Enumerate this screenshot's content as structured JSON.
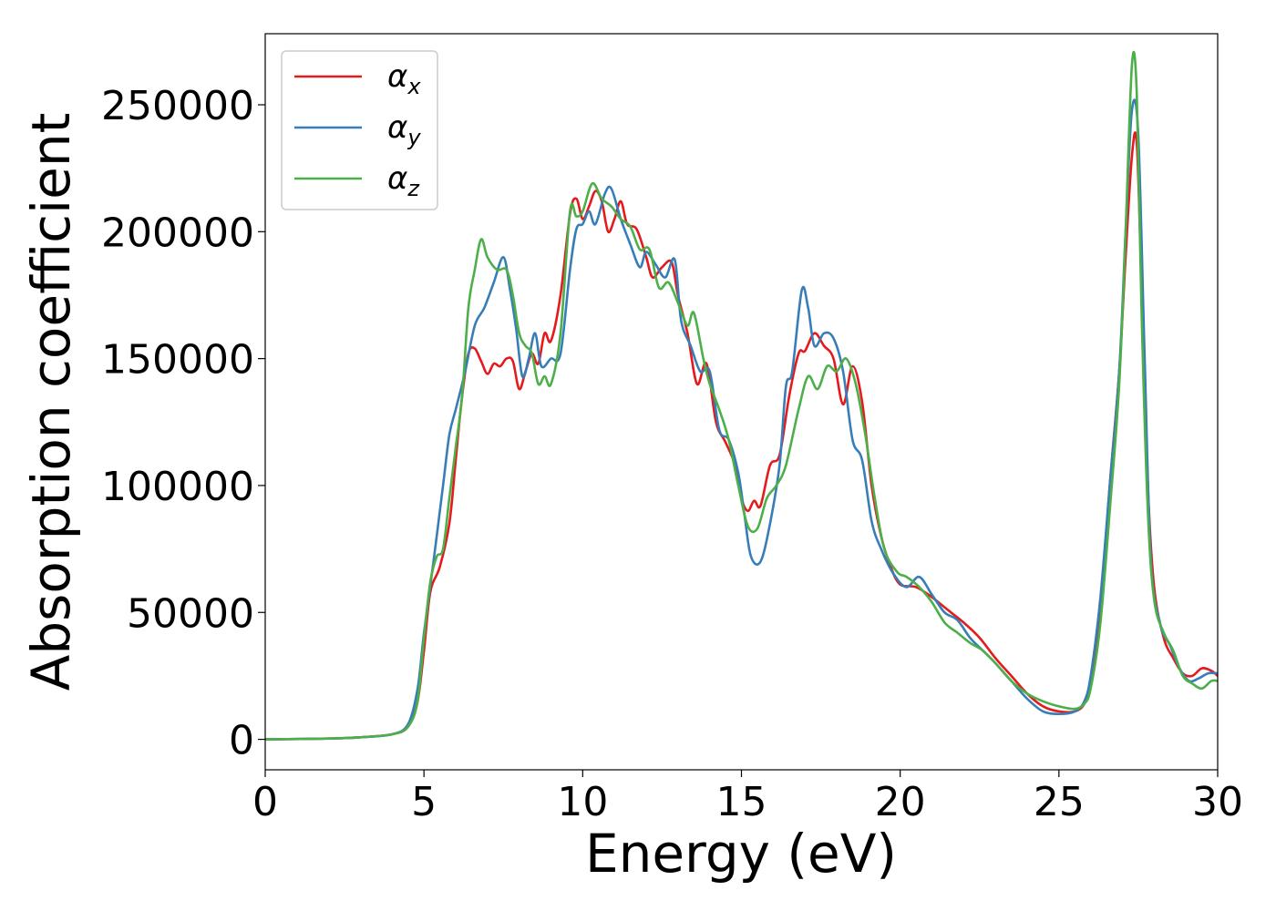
{
  "chart_data": {
    "type": "line",
    "title": "",
    "xlabel": "Energy (eV)",
    "ylabel": "Absorption coefficient",
    "xlim": [
      0,
      30
    ],
    "ylim": [
      -12000,
      278000
    ],
    "grid": false,
    "legend_position": "top-left",
    "xticks": [
      0,
      5,
      10,
      15,
      20,
      25,
      30
    ],
    "xtick_labels": [
      "0",
      "5",
      "10",
      "15",
      "20",
      "25",
      "30"
    ],
    "yticks": [
      0,
      50000,
      100000,
      150000,
      200000,
      250000
    ],
    "ytick_labels": [
      "0",
      "50000",
      "100000",
      "150000",
      "200000",
      "250000"
    ],
    "series": [
      {
        "name": "αx",
        "symbol": "α",
        "sub": "x",
        "color": "#e41a1c",
        "points": [
          [
            0,
            0
          ],
          [
            2,
            300
          ],
          [
            3,
            800
          ],
          [
            4,
            2000
          ],
          [
            4.5,
            5000
          ],
          [
            4.8,
            15000
          ],
          [
            5.0,
            35000
          ],
          [
            5.2,
            58000
          ],
          [
            5.5,
            68000
          ],
          [
            5.8,
            85000
          ],
          [
            6.0,
            110000
          ],
          [
            6.2,
            135000
          ],
          [
            6.4,
            152000
          ],
          [
            6.6,
            154000
          ],
          [
            6.8,
            149000
          ],
          [
            7.0,
            144000
          ],
          [
            7.2,
            148000
          ],
          [
            7.4,
            147000
          ],
          [
            7.6,
            150000
          ],
          [
            7.8,
            149000
          ],
          [
            8.0,
            138000
          ],
          [
            8.2,
            145000
          ],
          [
            8.4,
            152000
          ],
          [
            8.6,
            148000
          ],
          [
            8.8,
            160000
          ],
          [
            9.0,
            157000
          ],
          [
            9.3,
            175000
          ],
          [
            9.6,
            207000
          ],
          [
            9.8,
            213000
          ],
          [
            10.0,
            205000
          ],
          [
            10.2,
            210000
          ],
          [
            10.4,
            216000
          ],
          [
            10.6,
            212000
          ],
          [
            10.8,
            200000
          ],
          [
            11.0,
            205000
          ],
          [
            11.2,
            212000
          ],
          [
            11.4,
            203000
          ],
          [
            11.7,
            201000
          ],
          [
            12.0,
            190000
          ],
          [
            12.2,
            182000
          ],
          [
            12.5,
            186000
          ],
          [
            12.8,
            188000
          ],
          [
            13.0,
            175000
          ],
          [
            13.3,
            160000
          ],
          [
            13.6,
            140000
          ],
          [
            13.9,
            148000
          ],
          [
            14.2,
            125000
          ],
          [
            14.5,
            117000
          ],
          [
            14.8,
            108000
          ],
          [
            15.0,
            95000
          ],
          [
            15.2,
            90000
          ],
          [
            15.4,
            94000
          ],
          [
            15.6,
            92000
          ],
          [
            15.9,
            108000
          ],
          [
            16.2,
            112000
          ],
          [
            16.5,
            135000
          ],
          [
            16.8,
            152000
          ],
          [
            17.0,
            153000
          ],
          [
            17.3,
            160000
          ],
          [
            17.6,
            155000
          ],
          [
            17.9,
            150000
          ],
          [
            18.2,
            132000
          ],
          [
            18.5,
            147000
          ],
          [
            18.8,
            133000
          ],
          [
            19.1,
            100000
          ],
          [
            19.4,
            80000
          ],
          [
            19.7,
            68000
          ],
          [
            20.0,
            61000
          ],
          [
            20.5,
            60000
          ],
          [
            21.0,
            56000
          ],
          [
            21.3,
            53000
          ],
          [
            21.6,
            50000
          ],
          [
            22.0,
            46000
          ],
          [
            22.5,
            40000
          ],
          [
            23.0,
            32000
          ],
          [
            23.5,
            25000
          ],
          [
            24.0,
            18000
          ],
          [
            24.5,
            13000
          ],
          [
            25.0,
            11000
          ],
          [
            25.5,
            11000
          ],
          [
            25.8,
            14000
          ],
          [
            26.0,
            22000
          ],
          [
            26.3,
            50000
          ],
          [
            26.6,
            100000
          ],
          [
            26.9,
            145000
          ],
          [
            27.1,
            190000
          ],
          [
            27.3,
            230000
          ],
          [
            27.45,
            235000
          ],
          [
            27.6,
            180000
          ],
          [
            27.8,
            100000
          ],
          [
            28.0,
            60000
          ],
          [
            28.3,
            40000
          ],
          [
            28.6,
            32000
          ],
          [
            28.9,
            26000
          ],
          [
            29.2,
            25000
          ],
          [
            29.5,
            28000
          ],
          [
            29.8,
            27000
          ],
          [
            30,
            25000
          ]
        ]
      },
      {
        "name": "αy",
        "symbol": "α",
        "sub": "y",
        "color": "#377eb8",
        "points": [
          [
            0,
            0
          ],
          [
            2,
            300
          ],
          [
            3,
            800
          ],
          [
            4,
            2000
          ],
          [
            4.5,
            6000
          ],
          [
            4.8,
            20000
          ],
          [
            5.0,
            42000
          ],
          [
            5.3,
            70000
          ],
          [
            5.6,
            100000
          ],
          [
            5.8,
            120000
          ],
          [
            6.0,
            130000
          ],
          [
            6.3,
            145000
          ],
          [
            6.6,
            163000
          ],
          [
            6.9,
            170000
          ],
          [
            7.2,
            180000
          ],
          [
            7.5,
            190000
          ],
          [
            7.7,
            178000
          ],
          [
            7.9,
            162000
          ],
          [
            8.1,
            143000
          ],
          [
            8.3,
            150000
          ],
          [
            8.5,
            160000
          ],
          [
            8.7,
            147000
          ],
          [
            9.0,
            150000
          ],
          [
            9.3,
            152000
          ],
          [
            9.6,
            185000
          ],
          [
            9.8,
            201000
          ],
          [
            10.0,
            203000
          ],
          [
            10.2,
            208000
          ],
          [
            10.4,
            203000
          ],
          [
            10.7,
            215000
          ],
          [
            10.9,
            217000
          ],
          [
            11.2,
            205000
          ],
          [
            11.5,
            195000
          ],
          [
            11.8,
            186000
          ],
          [
            12.0,
            192000
          ],
          [
            12.3,
            187000
          ],
          [
            12.6,
            182000
          ],
          [
            12.9,
            189000
          ],
          [
            13.1,
            165000
          ],
          [
            13.4,
            155000
          ],
          [
            13.7,
            145000
          ],
          [
            14.0,
            145000
          ],
          [
            14.3,
            122000
          ],
          [
            14.6,
            118000
          ],
          [
            14.9,
            105000
          ],
          [
            15.1,
            88000
          ],
          [
            15.3,
            72000
          ],
          [
            15.6,
            70000
          ],
          [
            15.9,
            85000
          ],
          [
            16.2,
            108000
          ],
          [
            16.4,
            139000
          ],
          [
            16.6,
            145000
          ],
          [
            16.9,
            177000
          ],
          [
            17.1,
            170000
          ],
          [
            17.3,
            155000
          ],
          [
            17.6,
            160000
          ],
          [
            17.9,
            158000
          ],
          [
            18.2,
            145000
          ],
          [
            18.5,
            118000
          ],
          [
            18.8,
            110000
          ],
          [
            19.1,
            86000
          ],
          [
            19.4,
            75000
          ],
          [
            19.8,
            65000
          ],
          [
            20.2,
            60000
          ],
          [
            20.6,
            64000
          ],
          [
            21.0,
            57000
          ],
          [
            21.4,
            50000
          ],
          [
            21.8,
            47000
          ],
          [
            22.2,
            40000
          ],
          [
            22.6,
            35000
          ],
          [
            23.0,
            30000
          ],
          [
            23.5,
            23000
          ],
          [
            24.0,
            16000
          ],
          [
            24.5,
            11000
          ],
          [
            25.0,
            10000
          ],
          [
            25.5,
            11000
          ],
          [
            25.8,
            15000
          ],
          [
            26.0,
            25000
          ],
          [
            26.3,
            55000
          ],
          [
            26.6,
            100000
          ],
          [
            26.9,
            145000
          ],
          [
            27.1,
            200000
          ],
          [
            27.3,
            248000
          ],
          [
            27.5,
            238000
          ],
          [
            27.7,
            150000
          ],
          [
            27.9,
            70000
          ],
          [
            28.2,
            45000
          ],
          [
            28.5,
            37000
          ],
          [
            28.8,
            28000
          ],
          [
            29.1,
            23000
          ],
          [
            29.4,
            24000
          ],
          [
            29.7,
            26000
          ],
          [
            30,
            26000
          ]
        ]
      },
      {
        "name": "αz",
        "symbol": "α",
        "sub": "z",
        "color": "#4daf4a",
        "points": [
          [
            0,
            0
          ],
          [
            2,
            300
          ],
          [
            3,
            800
          ],
          [
            4,
            2000
          ],
          [
            4.5,
            5000
          ],
          [
            4.8,
            15000
          ],
          [
            5.0,
            40000
          ],
          [
            5.2,
            62000
          ],
          [
            5.4,
            72000
          ],
          [
            5.6,
            75000
          ],
          [
            5.8,
            95000
          ],
          [
            6.0,
            115000
          ],
          [
            6.2,
            135000
          ],
          [
            6.4,
            170000
          ],
          [
            6.6,
            185000
          ],
          [
            6.8,
            197000
          ],
          [
            7.0,
            190000
          ],
          [
            7.3,
            185000
          ],
          [
            7.6,
            185000
          ],
          [
            7.8,
            175000
          ],
          [
            8.0,
            160000
          ],
          [
            8.2,
            155000
          ],
          [
            8.4,
            152000
          ],
          [
            8.6,
            140000
          ],
          [
            8.8,
            143000
          ],
          [
            9.0,
            140000
          ],
          [
            9.3,
            160000
          ],
          [
            9.6,
            208000
          ],
          [
            9.8,
            206000
          ],
          [
            10.0,
            208000
          ],
          [
            10.3,
            219000
          ],
          [
            10.6,
            213000
          ],
          [
            10.9,
            210000
          ],
          [
            11.2,
            205000
          ],
          [
            11.5,
            202000
          ],
          [
            11.8,
            193000
          ],
          [
            12.1,
            193000
          ],
          [
            12.4,
            178000
          ],
          [
            12.7,
            180000
          ],
          [
            13.0,
            172000
          ],
          [
            13.3,
            163000
          ],
          [
            13.5,
            168000
          ],
          [
            13.8,
            150000
          ],
          [
            14.0,
            140000
          ],
          [
            14.3,
            130000
          ],
          [
            14.6,
            118000
          ],
          [
            14.9,
            100000
          ],
          [
            15.2,
            84000
          ],
          [
            15.5,
            83000
          ],
          [
            15.8,
            95000
          ],
          [
            16.1,
            100000
          ],
          [
            16.4,
            108000
          ],
          [
            16.8,
            130000
          ],
          [
            17.1,
            143000
          ],
          [
            17.4,
            138000
          ],
          [
            17.7,
            147000
          ],
          [
            18.0,
            145000
          ],
          [
            18.3,
            150000
          ],
          [
            18.6,
            140000
          ],
          [
            18.9,
            120000
          ],
          [
            19.2,
            95000
          ],
          [
            19.5,
            75000
          ],
          [
            19.9,
            66000
          ],
          [
            20.2,
            64000
          ],
          [
            20.6,
            60000
          ],
          [
            21.0,
            54000
          ],
          [
            21.4,
            46000
          ],
          [
            21.8,
            42000
          ],
          [
            22.2,
            38000
          ],
          [
            22.6,
            35000
          ],
          [
            23.0,
            30000
          ],
          [
            23.5,
            23000
          ],
          [
            24.0,
            18000
          ],
          [
            24.5,
            15000
          ],
          [
            25.0,
            13000
          ],
          [
            25.5,
            12000
          ],
          [
            25.8,
            14000
          ],
          [
            26.0,
            20000
          ],
          [
            26.3,
            45000
          ],
          [
            26.6,
            90000
          ],
          [
            26.9,
            140000
          ],
          [
            27.1,
            200000
          ],
          [
            27.3,
            266000
          ],
          [
            27.45,
            255000
          ],
          [
            27.6,
            170000
          ],
          [
            27.8,
            90000
          ],
          [
            28.0,
            55000
          ],
          [
            28.3,
            42000
          ],
          [
            28.6,
            35000
          ],
          [
            28.9,
            25000
          ],
          [
            29.2,
            22000
          ],
          [
            29.5,
            20000
          ],
          [
            29.8,
            23000
          ],
          [
            30,
            23000
          ]
        ]
      }
    ]
  }
}
